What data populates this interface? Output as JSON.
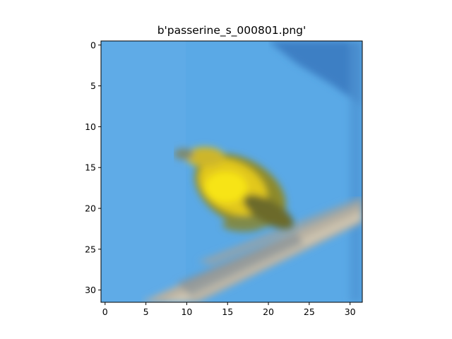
{
  "figure": {
    "title": "b'passerine_s_000801.png'"
  },
  "axes": {
    "x_ticks": [
      0,
      5,
      10,
      15,
      20,
      25,
      30
    ],
    "y_ticks": [
      0,
      5,
      10,
      15,
      20,
      25,
      30
    ],
    "x_range": [
      -0.5,
      31.5
    ],
    "y_range": [
      31.5,
      -0.5
    ]
  },
  "image": {
    "pixel_grid": 32,
    "subject": "yellow passerine bird perched on a gray branch against blue sky",
    "colors": {
      "sky": "#5aa9e6",
      "sky_dark": "#3d7fc4",
      "bird_yellow": "#f2dc1c",
      "bird_olive": "#8d8a2a",
      "branch": "#b8b0a0",
      "branch_dark": "#7d8c95"
    }
  }
}
